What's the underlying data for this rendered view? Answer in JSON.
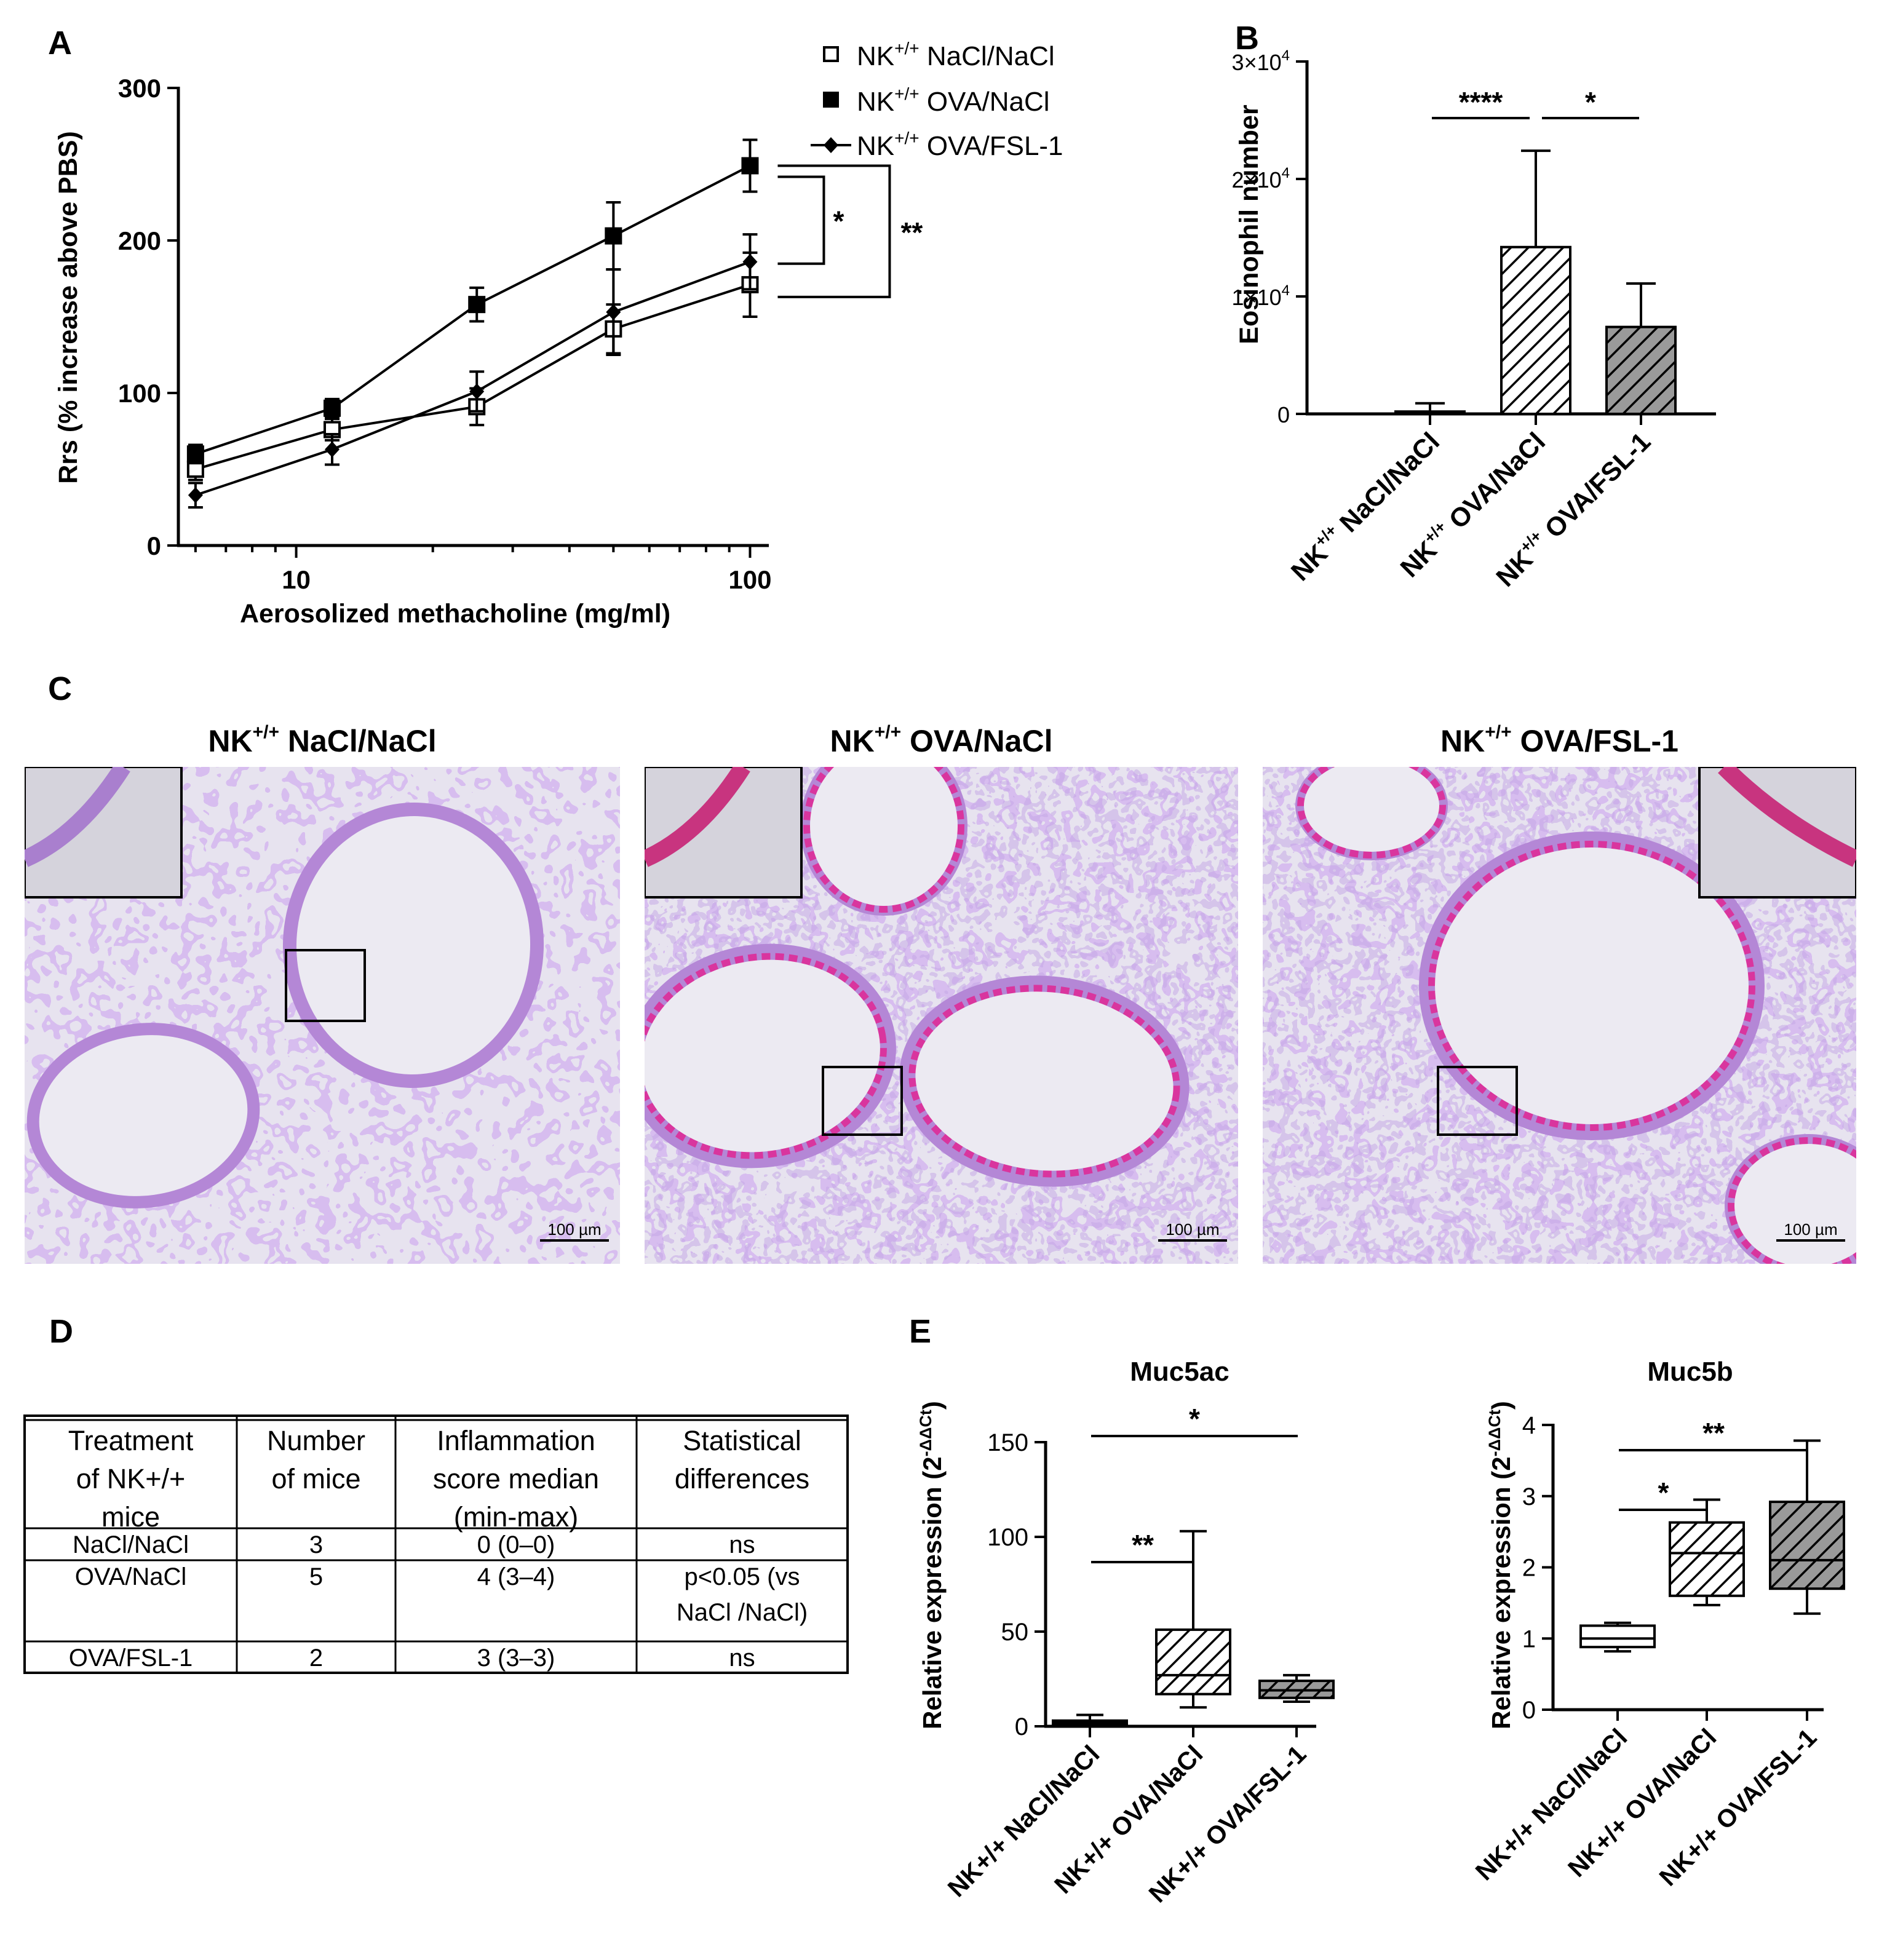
{
  "panels": {
    "A": {
      "letter": "A"
    },
    "B": {
      "letter": "B"
    },
    "C": {
      "letter": "C"
    },
    "D": {
      "letter": "D"
    },
    "E": {
      "letter": "E"
    }
  },
  "chart_data": [
    {
      "id": "A",
      "type": "line",
      "xscale": "log",
      "xlabel": "Aerosolized methacholine (mg/ml)",
      "ylabel": "Rrs (% increase above PBS)",
      "xlim": [
        5.5,
        110
      ],
      "ylim": [
        0,
        300
      ],
      "xticks": [
        10,
        100
      ],
      "yticks": [
        0,
        100,
        200,
        300
      ],
      "x": [
        6,
        12,
        25,
        50,
        100
      ],
      "legend_position": "top-right",
      "series": [
        {
          "name_pre": "NK",
          "name_sup": "+/+",
          "name_post": " NaCl/NaCl",
          "marker": "open-square",
          "values": [
            50,
            76,
            91,
            142,
            171
          ],
          "errors": [
            7,
            7,
            12,
            16,
            21
          ]
        },
        {
          "name_pre": "NK",
          "name_sup": "+/+",
          "name_post": " OVA/NaCl",
          "marker": "filled-square",
          "values": [
            60,
            90,
            158,
            203,
            249
          ],
          "errors": [
            6,
            6,
            11,
            22,
            17
          ]
        },
        {
          "name_pre": "NK",
          "name_sup": "+/+",
          "name_post": " OVA/FSL-1",
          "marker": "filled-diamond",
          "values": [
            33,
            63,
            101,
            153,
            186
          ],
          "errors": [
            8,
            10,
            13,
            28,
            18
          ]
        }
      ],
      "significance": [
        {
          "label": "*",
          "from_series": 1,
          "to_series": 2
        },
        {
          "label": "**",
          "from_series": 1,
          "to_series": 0
        }
      ]
    },
    {
      "id": "B",
      "type": "bar",
      "ylabel": "Eosinophil number",
      "ylim": [
        0,
        30000
      ],
      "yticks": [
        0,
        10000,
        20000,
        30000
      ],
      "ytick_labels": [
        {
          "base": "0",
          "exp": ""
        },
        {
          "base": "1×10",
          "exp": "4"
        },
        {
          "base": "2×10",
          "exp": "4"
        },
        {
          "base": "3×10",
          "exp": "4"
        }
      ],
      "categories": [
        {
          "pre": "NK",
          "sup": "+/+",
          "post": " NaCl/NaCl"
        },
        {
          "pre": "NK",
          "sup": "+/+",
          "post": " OVA/NaCl"
        },
        {
          "pre": "NK",
          "sup": "+/+",
          "post": " OVA/FSL-1"
        }
      ],
      "values": [
        200,
        14200,
        7400
      ],
      "errors": [
        700,
        8200,
        3700
      ],
      "fills": [
        "white",
        "hatch-white",
        "hatch-gray"
      ],
      "significance": [
        {
          "label": "****",
          "from": 0,
          "to": 1
        },
        {
          "label": "*",
          "from": 1,
          "to": 2
        }
      ]
    },
    {
      "id": "E1",
      "type": "box",
      "title": "Muc5ac",
      "ylabel_base": "Relative expression (2",
      "ylabel_exp": "-ΔΔCt",
      "ylabel_end": ")",
      "ylim": [
        0,
        150
      ],
      "yticks": [
        0,
        50,
        100,
        150
      ],
      "categories": [
        "NK+/+ NaCl/NaCl",
        "NK+/+ OVA/NaCl",
        "NK+/+ OVA/FSL-1"
      ],
      "boxes": [
        {
          "min": 0,
          "q1": 1,
          "median": 2,
          "q3": 3,
          "max": 6,
          "fill": "white"
        },
        {
          "min": 10,
          "q1": 17,
          "median": 27,
          "q3": 51,
          "max": 103,
          "fill": "hatch-white"
        },
        {
          "min": 13,
          "q1": 15,
          "median": 19,
          "q3": 24,
          "max": 27,
          "fill": "hatch-gray"
        }
      ],
      "significance": [
        {
          "label": "**",
          "from": 0,
          "to": 1
        },
        {
          "label": "*",
          "from": 0,
          "to": 2
        }
      ]
    },
    {
      "id": "E2",
      "type": "box",
      "title": "Muc5b",
      "ylabel_base": "Relative expression (2",
      "ylabel_exp": "-ΔΔCt",
      "ylabel_end": ")",
      "ylim": [
        0,
        4
      ],
      "yticks": [
        0,
        1,
        2,
        3,
        4
      ],
      "categories": [
        "NK+/+ NaCl/NaCl",
        "NK+/+ OVA/NaCl",
        "NK+/+ OVA/FSL-1"
      ],
      "boxes": [
        {
          "min": 0.82,
          "q1": 0.88,
          "median": 1.0,
          "q3": 1.18,
          "max": 1.22,
          "fill": "white"
        },
        {
          "min": 1.47,
          "q1": 1.6,
          "median": 2.2,
          "q3": 2.63,
          "max": 2.95,
          "fill": "hatch-white"
        },
        {
          "min": 1.35,
          "q1": 1.7,
          "median": 2.1,
          "q3": 2.92,
          "max": 3.78,
          "fill": "hatch-gray"
        }
      ],
      "significance": [
        {
          "label": "*",
          "from": 0,
          "to": 1
        },
        {
          "label": "**",
          "from": 0,
          "to": 2
        }
      ]
    }
  ],
  "histology": {
    "panels": [
      {
        "title_pre": "NK",
        "title_sup": "+/+",
        "title_post": " NaCl/NaCl",
        "scale_bar": "100 µm"
      },
      {
        "title_pre": "NK",
        "title_sup": "+/+",
        "title_post": " OVA/NaCl",
        "scale_bar": "100 µm"
      },
      {
        "title_pre": "NK",
        "title_sup": "+/+",
        "title_post": " OVA/FSL-1",
        "scale_bar": "100 µm"
      }
    ]
  },
  "table": {
    "headers": [
      [
        "Treatment",
        "of NK+/+",
        "mice"
      ],
      [
        "Number",
        "of mice"
      ],
      [
        "Inflammation",
        "score median",
        "(min-max)"
      ],
      [
        "Statistical",
        "differences"
      ]
    ],
    "rows": [
      [
        [
          "NaCl/NaCl"
        ],
        [
          "3"
        ],
        [
          "0 (0–0)"
        ],
        [
          "ns"
        ]
      ],
      [
        [
          "OVA/NaCl"
        ],
        [
          "5"
        ],
        [
          "4 (3–4)"
        ],
        [
          "p<0.05 (vs",
          "NaCl /NaCl)"
        ]
      ],
      [
        [
          "OVA/FSL-1"
        ],
        [
          "2"
        ],
        [
          "3 (3–3)"
        ],
        [
          "ns"
        ]
      ]
    ]
  }
}
